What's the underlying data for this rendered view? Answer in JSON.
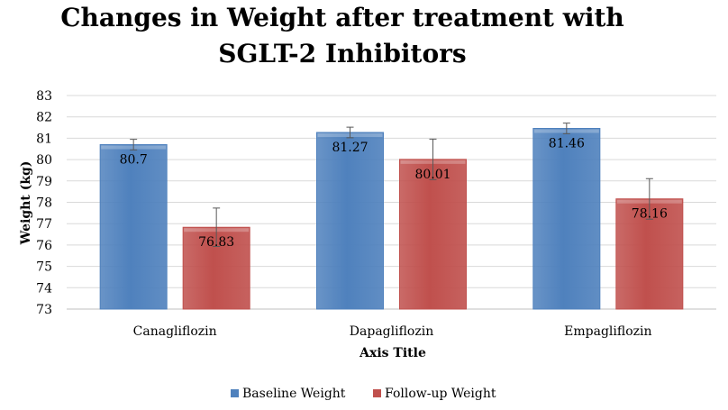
{
  "chart_data": {
    "type": "bar",
    "title_line1": "Changes in Weight after treatment with",
    "title_line2": "SGLT-2 Inhibitors",
    "xlabel": "Axis Title",
    "ylabel": "Weight (kg)",
    "ylim": [
      73,
      83
    ],
    "yticks": [
      73,
      74,
      75,
      76,
      77,
      78,
      79,
      80,
      81,
      82,
      83
    ],
    "grid": true,
    "legend_position": "bottom",
    "categories": [
      "Canagliflozin",
      "Dapagliflozin",
      "Empagliflozin"
    ],
    "series": [
      {
        "name": "Baseline Weight",
        "color": "#4F81BD",
        "values": [
          80.7,
          81.27,
          81.46
        ],
        "labels": [
          "80.7",
          "81.27",
          "81.46"
        ],
        "error": [
          0.25,
          0.25,
          0.25
        ]
      },
      {
        "name": "Follow-up Weight",
        "color": "#C0504D",
        "values": [
          76.83,
          80.01,
          78.16
        ],
        "labels": [
          "76.83",
          "80.01",
          "78.16"
        ],
        "error": [
          0.9,
          0.95,
          0.95
        ]
      }
    ]
  }
}
